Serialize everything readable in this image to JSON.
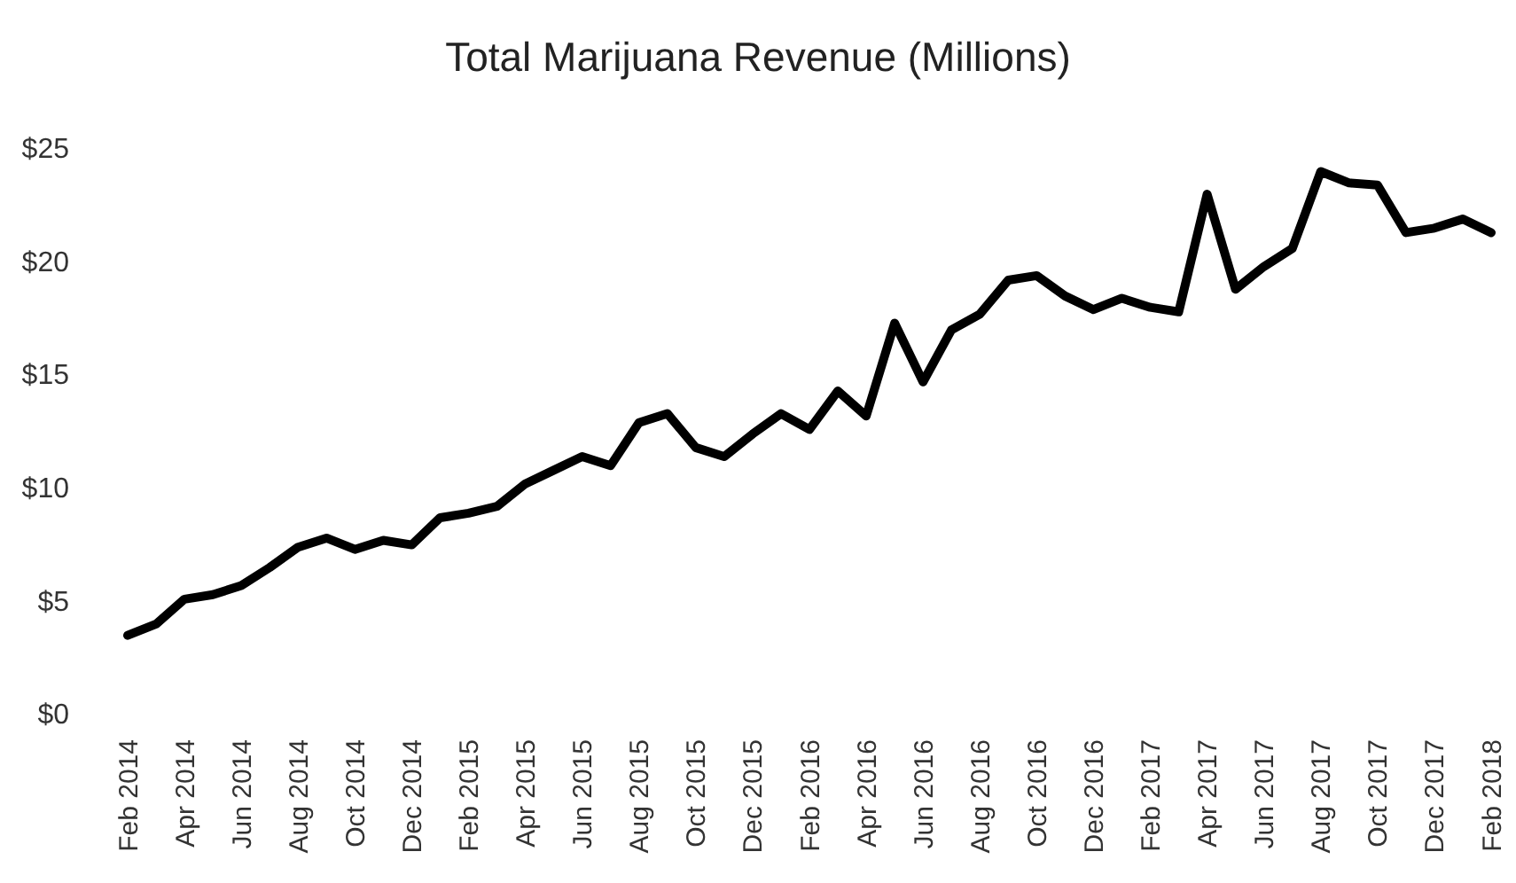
{
  "chart_data": {
    "type": "line",
    "title": "Total Marijuana Revenue (Millions)",
    "categories": [
      "Feb 2014",
      null,
      "Apr 2014",
      null,
      "Jun 2014",
      null,
      "Aug 2014",
      null,
      "Oct 2014",
      null,
      "Dec 2014",
      null,
      "Feb 2015",
      null,
      "Apr 2015",
      null,
      "Jun 2015",
      null,
      "Aug 2015",
      null,
      "Oct 2015",
      null,
      "Dec 2015",
      null,
      "Feb 2016",
      null,
      "Apr 2016",
      null,
      "Jun 2016",
      null,
      "Aug 2016",
      null,
      "Oct 2016",
      null,
      "Dec 2016",
      null,
      "Feb 2017",
      null,
      "Apr 2017",
      null,
      "Jun 2017",
      null,
      "Aug 2017",
      null,
      "Oct 2017",
      null,
      "Dec 2017",
      null,
      "Feb 2018"
    ],
    "series": [
      {
        "color": "#000000",
        "values": [
          3.5,
          4.0,
          5.1,
          5.3,
          5.7,
          6.5,
          7.4,
          7.8,
          7.3,
          7.7,
          7.5,
          8.7,
          8.9,
          9.2,
          10.2,
          10.8,
          11.4,
          11.0,
          12.9,
          13.3,
          11.8,
          11.4,
          12.4,
          13.3,
          12.6,
          14.3,
          13.2,
          17.3,
          14.7,
          17.0,
          17.7,
          19.2,
          19.4,
          18.5,
          17.9,
          18.4,
          18.0,
          17.8,
          23.0,
          18.8,
          19.8,
          20.6,
          24.0,
          23.5,
          23.4,
          21.3,
          21.5,
          21.9,
          21.3
        ]
      }
    ],
    "ylim": [
      0,
      25
    ],
    "yticks": [
      {
        "value": 0,
        "label": "$0"
      },
      {
        "value": 5,
        "label": "$5"
      },
      {
        "value": 10,
        "label": "$10"
      },
      {
        "value": 15,
        "label": "$15"
      },
      {
        "value": 20,
        "label": "$20"
      },
      {
        "value": 25,
        "label": "$25"
      }
    ],
    "grid": false,
    "marker": "none",
    "line_style": "solid"
  }
}
